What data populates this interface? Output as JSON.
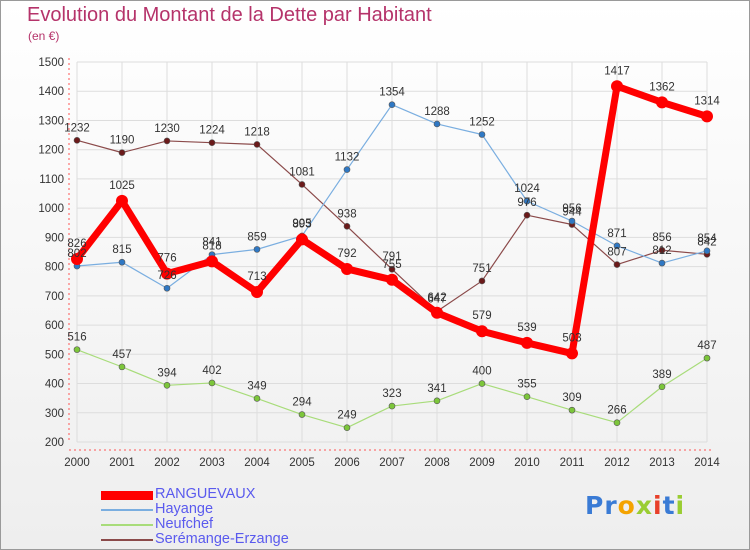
{
  "title": "Evolution du Montant de la Dette par Habitant",
  "unit": "(en €)",
  "logo": {
    "text": "Proxiti",
    "letters": [
      {
        "char": "P",
        "color": "#3a7bd5"
      },
      {
        "char": "r",
        "color": "#3a7bd5"
      },
      {
        "char": "o",
        "color": "#f4a300"
      },
      {
        "char": "x",
        "color": "#9acd32"
      },
      {
        "char": "i",
        "color": "#e8402a"
      },
      {
        "char": "t",
        "color": "#3a7bd5"
      },
      {
        "char": "i",
        "color": "#9acd32"
      }
    ]
  },
  "chart_data": {
    "type": "line",
    "x": [
      "2000",
      "2001",
      "2002",
      "2003",
      "2004",
      "2005",
      "2006",
      "2007",
      "2008",
      "2009",
      "2010",
      "2011",
      "2012",
      "2013",
      "2014"
    ],
    "ylim": [
      200,
      1500
    ],
    "yticks": [
      200,
      300,
      400,
      500,
      600,
      700,
      800,
      900,
      1000,
      1100,
      1200,
      1300,
      1400,
      1500
    ],
    "grid": true,
    "legend_position": "bottom-left",
    "series": [
      {
        "name": "RANGUEVAUX",
        "color": "#ff0000",
        "marker_color": "#ff0000",
        "line_width": 7,
        "marker_radius": 6,
        "values": [
          826,
          1025,
          776,
          818,
          713,
          893,
          792,
          755,
          642,
          579,
          539,
          503,
          1417,
          1362,
          1314
        ]
      },
      {
        "name": "Hayange",
        "color": "#7aaee0",
        "marker_color": "#2f78c4",
        "line_width": 1.2,
        "marker_radius": 3,
        "values": [
          802,
          815,
          726,
          841,
          859,
          905,
          1132,
          1354,
          1288,
          1252,
          1024,
          956,
          871,
          812,
          854
        ]
      },
      {
        "name": "Neufchef",
        "color": "#a8dc7a",
        "marker_color": "#7cc63a",
        "line_width": 1.2,
        "marker_radius": 3,
        "values": [
          516,
          457,
          394,
          402,
          349,
          294,
          249,
          323,
          341,
          400,
          355,
          309,
          266,
          389,
          487
        ]
      },
      {
        "name": "Serémange-Erzange",
        "color": "#8b4a4a",
        "marker_color": "#6b1a1a",
        "line_width": 1.2,
        "marker_radius": 3,
        "values": [
          1232,
          1190,
          1230,
          1224,
          1218,
          1081,
          938,
          791,
          647,
          751,
          976,
          944,
          807,
          856,
          842
        ]
      }
    ]
  }
}
